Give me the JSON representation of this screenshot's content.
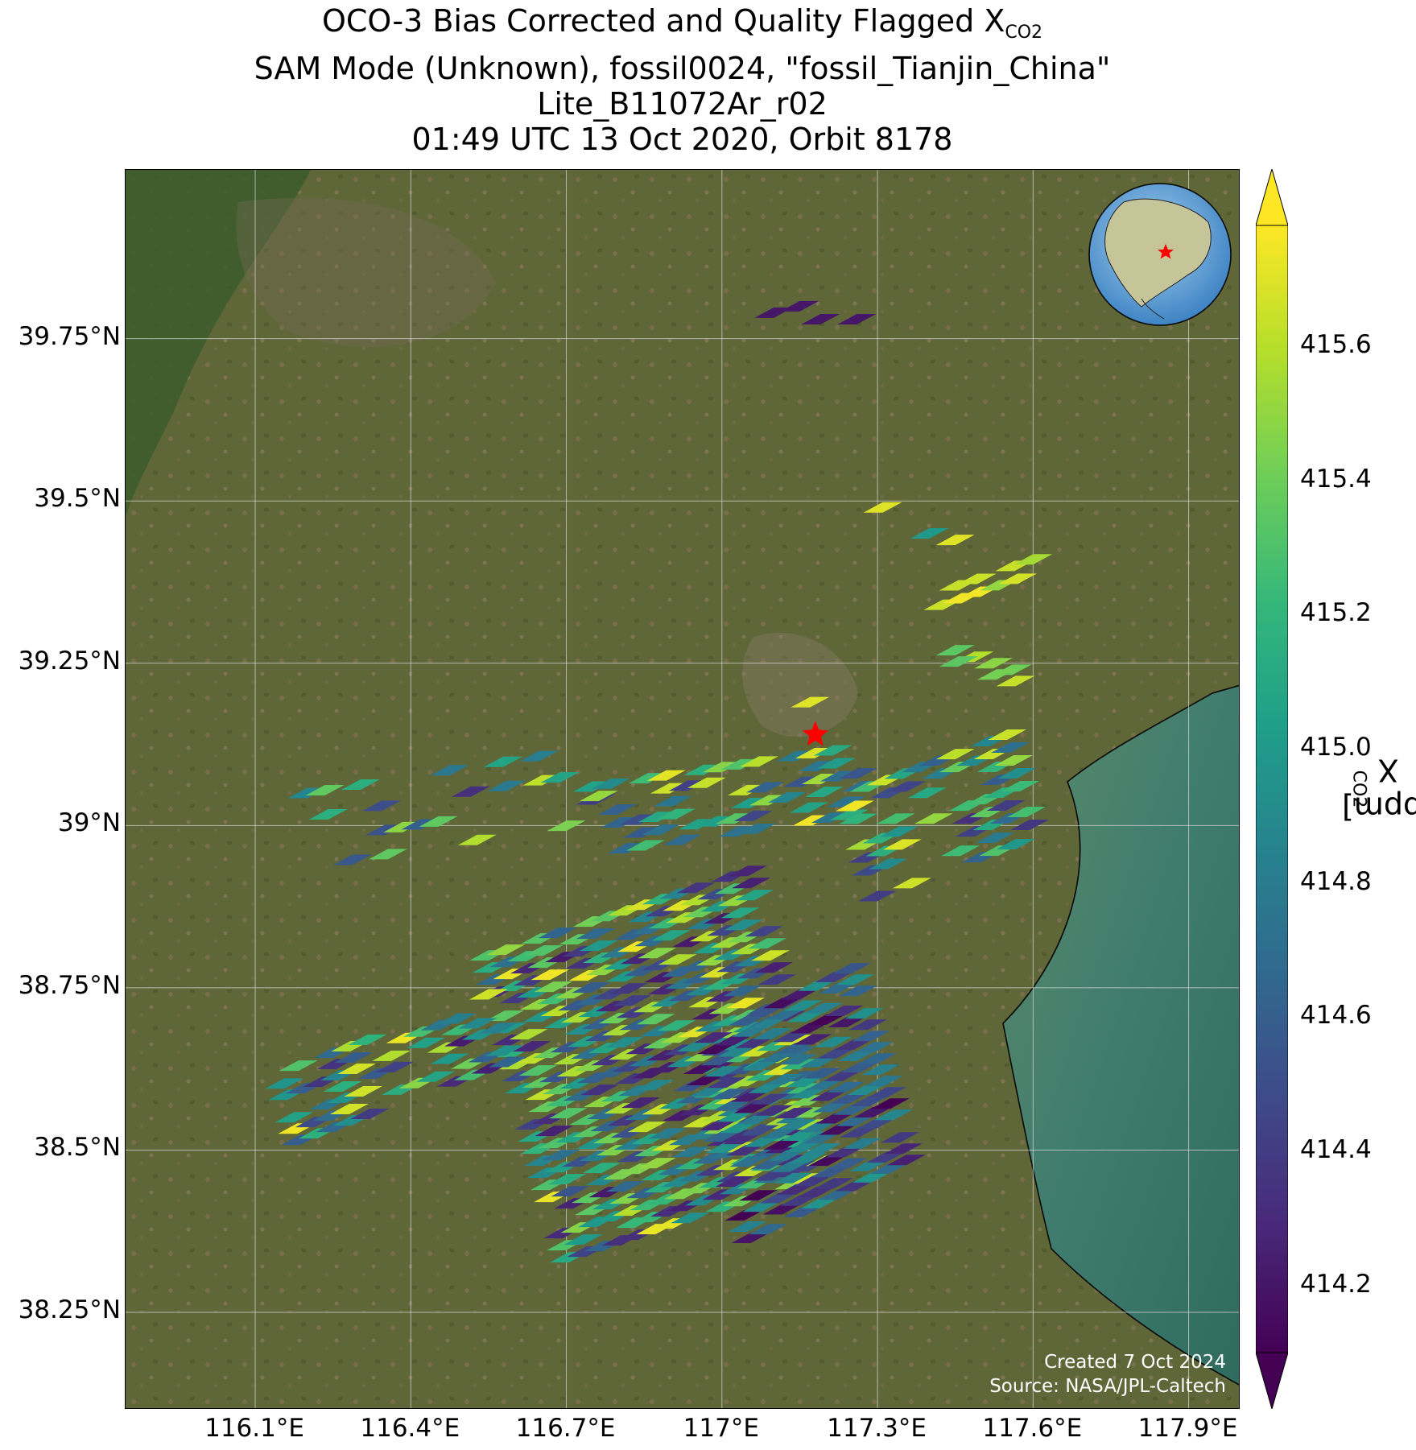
{
  "title": {
    "line1_prefix": "OCO-3 Bias Corrected and Quality Flagged X",
    "line1_sub": "CO2",
    "line2": "SAM Mode (Unknown), fossil0024, \"fossil_Tianjin_China\"",
    "line3": "Lite_B11072Ar_r02",
    "line4": "01:49 UTC 13 Oct 2020, Orbit 8178"
  },
  "map": {
    "extent": {
      "lon_min": 115.85,
      "lon_max": 118.0,
      "lat_min": 38.1,
      "lat_max": 40.01
    },
    "lat_ticks": [
      {
        "value": 38.25,
        "label": "38.25°N"
      },
      {
        "value": 38.5,
        "label": "38.5°N"
      },
      {
        "value": 38.75,
        "label": "38.75°N"
      },
      {
        "value": 39.0,
        "label": "39°N"
      },
      {
        "value": 39.25,
        "label": "39.25°N"
      },
      {
        "value": 39.5,
        "label": "39.5°N"
      },
      {
        "value": 39.75,
        "label": "39.75°N"
      }
    ],
    "lon_ticks": [
      {
        "value": 116.1,
        "label": "116.1°E"
      },
      {
        "value": 116.4,
        "label": "116.4°E"
      },
      {
        "value": 116.7,
        "label": "116.7°E"
      },
      {
        "value": 117.0,
        "label": "117°E"
      },
      {
        "value": 117.3,
        "label": "117.3°E"
      },
      {
        "value": 117.6,
        "label": "117.6°E"
      },
      {
        "value": 117.9,
        "label": "117.9°E"
      }
    ],
    "target": {
      "name": "fossil_Tianjin_China",
      "lon": 117.18,
      "lat": 39.14,
      "color": "#ff0000"
    },
    "credit_line1": "Created 7 Oct 2024",
    "credit_line2": "Source: NASA/JPL-Caltech",
    "inset_globe": {
      "center_lon": 110,
      "center_lat": 30,
      "marker_color": "#ff0000"
    }
  },
  "colorbar": {
    "label_prefix": "X",
    "label_sub": "CO2",
    "label_suffix": " [ppm]",
    "min": 414.1,
    "max": 415.78,
    "extend": "both",
    "ticks": [
      414.2,
      414.4,
      414.6,
      414.8,
      415.0,
      415.2,
      415.4,
      415.6
    ],
    "tick_labels": [
      "414.2",
      "414.4",
      "414.6",
      "414.8",
      "415.0",
      "415.2",
      "415.4",
      "415.6"
    ],
    "colormap": [
      "#440154",
      "#482878",
      "#3e4989",
      "#31688e",
      "#26828e",
      "#1f9e89",
      "#35b779",
      "#6ece58",
      "#b5de2b",
      "#fde725"
    ]
  }
}
